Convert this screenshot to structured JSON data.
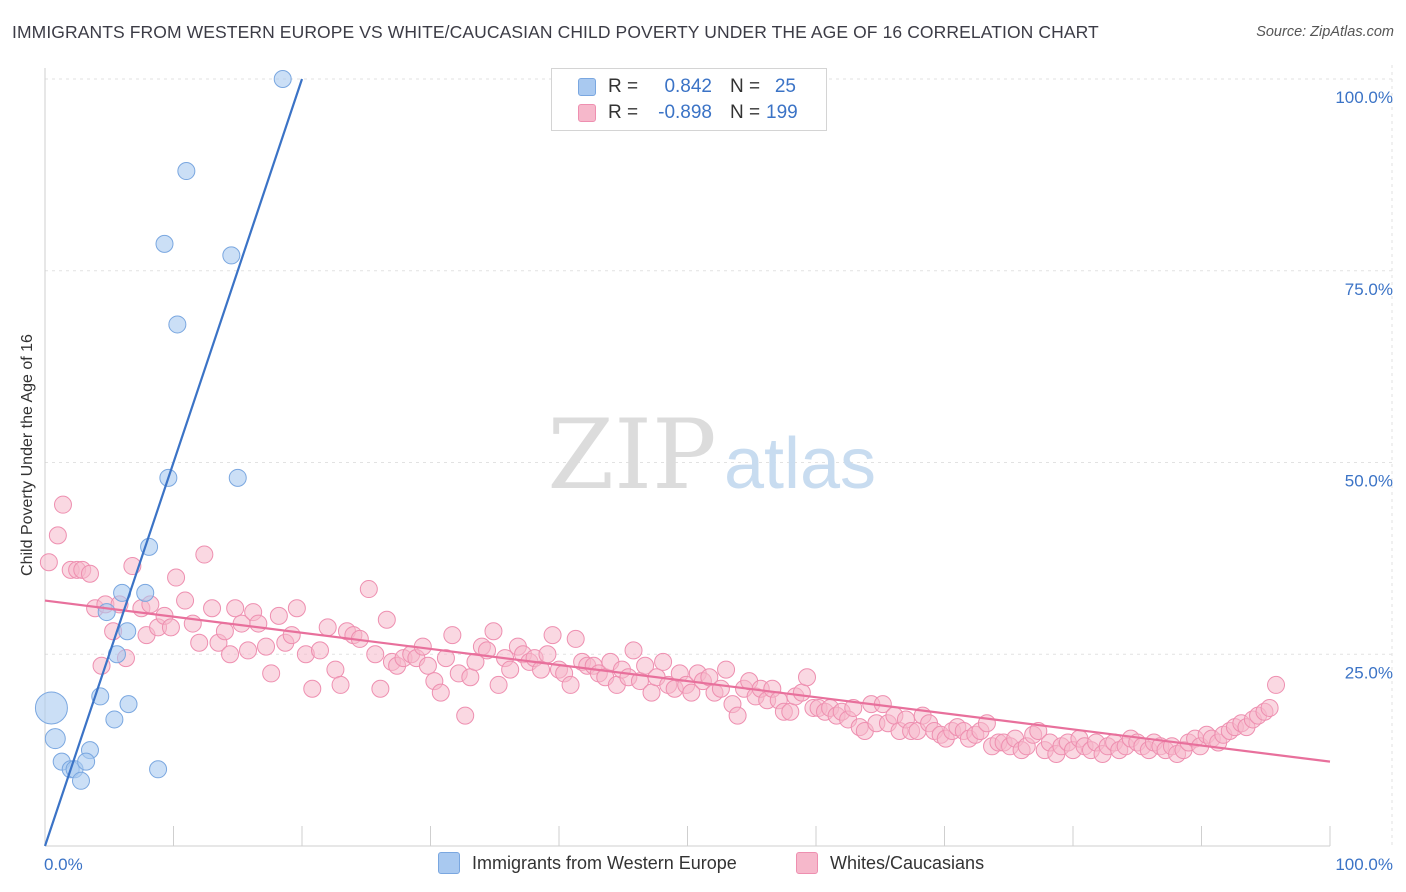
{
  "title": "IMMIGRANTS FROM WESTERN EUROPE VS WHITE/CAUCASIAN CHILD POVERTY UNDER THE AGE OF 16 CORRELATION CHART",
  "source": "Source: ZipAtlas.com",
  "watermark": {
    "zip": "ZIP",
    "atlas": "atlas"
  },
  "legend": {
    "rows": [
      {
        "r_label": "R =",
        "r_value": "0.842",
        "n_label": "N =",
        "n_value": "25",
        "color": "#a9c9f0",
        "border": "#7aa7e0"
      },
      {
        "r_label": "R =",
        "r_value": "-0.898",
        "n_label": "N =",
        "n_value": "199",
        "color": "#f6b8cb",
        "border": "#ee8fb0"
      }
    ]
  },
  "bottom_legend": [
    {
      "label": "Immigrants from Western Europe",
      "color": "#a9c9f0",
      "border": "#7aa7e0"
    },
    {
      "label": "Whites/Caucasians",
      "color": "#f6b8cb",
      "border": "#ee8fb0"
    }
  ],
  "chart_data": {
    "type": "scatter",
    "xlabel": "",
    "ylabel": "Child Poverty Under the Age of 16",
    "xlim": [
      0,
      100
    ],
    "ylim": [
      0,
      100
    ],
    "x_tick_labels": [
      "0.0%",
      "100.0%"
    ],
    "y_ticks": [
      {
        "value": 100,
        "label": "100.0%"
      },
      {
        "value": 75,
        "label": "75.0%"
      },
      {
        "value": 50,
        "label": "50.0%"
      },
      {
        "value": 25,
        "label": "25.0%"
      }
    ],
    "grid": true,
    "series": [
      {
        "name": "Immigrants from Western Europe",
        "color": "#a9c9f0",
        "stroke": "#7aa7e0",
        "trend_color": "#3b73c6",
        "trend": {
          "x": [
            0,
            20
          ],
          "y": [
            0,
            100
          ]
        },
        "points": [
          [
            0.5,
            18,
            3
          ],
          [
            0.8,
            14,
            1.5
          ],
          [
            1.3,
            11,
            1
          ],
          [
            2.0,
            10,
            1
          ],
          [
            2.3,
            10,
            1
          ],
          [
            2.8,
            8.5,
            1
          ],
          [
            3.5,
            12.5,
            1
          ],
          [
            3.2,
            11,
            1
          ],
          [
            4.3,
            19.5,
            1
          ],
          [
            5.4,
            16.5,
            1
          ],
          [
            5.6,
            25,
            1
          ],
          [
            6.4,
            28,
            1
          ],
          [
            6.5,
            18.5,
            1
          ],
          [
            4.8,
            30.5,
            1
          ],
          [
            7.8,
            33,
            1
          ],
          [
            8.1,
            39,
            1
          ],
          [
            8.8,
            10,
            1
          ],
          [
            9.6,
            48,
            1
          ],
          [
            10.3,
            68,
            1
          ],
          [
            9.3,
            78.5,
            1
          ],
          [
            11.0,
            88,
            1
          ],
          [
            14.5,
            77,
            1
          ],
          [
            15.0,
            48,
            1
          ],
          [
            18.5,
            100,
            1
          ],
          [
            6.0,
            33,
            1
          ]
        ]
      },
      {
        "name": "Whites/Caucasians",
        "color": "#f6b8cb",
        "stroke": "#ee8fb0",
        "trend_color": "#e8709c",
        "trend": {
          "x": [
            0,
            100
          ],
          "y": [
            32,
            11
          ]
        },
        "points": [
          [
            0.3,
            37
          ],
          [
            1.0,
            40.5
          ],
          [
            1.4,
            44.5
          ],
          [
            2.0,
            36
          ],
          [
            2.5,
            36
          ],
          [
            2.9,
            36
          ],
          [
            3.5,
            35.5
          ],
          [
            3.9,
            31
          ],
          [
            4.4,
            23.5
          ],
          [
            4.7,
            31.5
          ],
          [
            5.3,
            28
          ],
          [
            5.8,
            31.5
          ],
          [
            6.3,
            24.5
          ],
          [
            6.8,
            36.5
          ],
          [
            7.5,
            31
          ],
          [
            7.9,
            27.5
          ],
          [
            8.2,
            31.5
          ],
          [
            8.8,
            28.5
          ],
          [
            9.3,
            30
          ],
          [
            9.8,
            28.5
          ],
          [
            10.2,
            35
          ],
          [
            10.9,
            32
          ],
          [
            11.5,
            29
          ],
          [
            12.0,
            26.5
          ],
          [
            12.4,
            38
          ],
          [
            13.0,
            31
          ],
          [
            13.5,
            26.5
          ],
          [
            14.0,
            28
          ],
          [
            14.4,
            25
          ],
          [
            14.8,
            31
          ],
          [
            15.3,
            29
          ],
          [
            15.8,
            25.5
          ],
          [
            16.2,
            30.5
          ],
          [
            16.6,
            29
          ],
          [
            17.2,
            26
          ],
          [
            17.6,
            22.5
          ],
          [
            18.2,
            30
          ],
          [
            18.7,
            26.5
          ],
          [
            19.2,
            27.5
          ],
          [
            19.6,
            31
          ],
          [
            20.3,
            25
          ],
          [
            20.8,
            20.5
          ],
          [
            21.4,
            25.5
          ],
          [
            22.0,
            28.5
          ],
          [
            22.6,
            23
          ],
          [
            23.0,
            21
          ],
          [
            23.5,
            28
          ],
          [
            24.0,
            27.5
          ],
          [
            24.5,
            27
          ],
          [
            25.2,
            33.5
          ],
          [
            25.7,
            25
          ],
          [
            26.1,
            20.5
          ],
          [
            26.6,
            29.5
          ],
          [
            27.0,
            24
          ],
          [
            27.4,
            23.5
          ],
          [
            27.9,
            24.5
          ],
          [
            28.5,
            25
          ],
          [
            28.9,
            24.5
          ],
          [
            29.4,
            26
          ],
          [
            29.8,
            23.5
          ],
          [
            30.3,
            21.5
          ],
          [
            30.8,
            20
          ],
          [
            31.2,
            24.5
          ],
          [
            31.7,
            27.5
          ],
          [
            32.2,
            22.5
          ],
          [
            32.7,
            17
          ],
          [
            33.1,
            22
          ],
          [
            33.5,
            24
          ],
          [
            34.0,
            26
          ],
          [
            34.4,
            25.5
          ],
          [
            34.9,
            28
          ],
          [
            35.3,
            21
          ],
          [
            35.8,
            24.5
          ],
          [
            36.2,
            23
          ],
          [
            36.8,
            26
          ],
          [
            37.2,
            25
          ],
          [
            37.7,
            24
          ],
          [
            38.1,
            24.5
          ],
          [
            38.6,
            23
          ],
          [
            39.1,
            25
          ],
          [
            39.5,
            27.5
          ],
          [
            40.0,
            23
          ],
          [
            40.4,
            22.5
          ],
          [
            40.9,
            21
          ],
          [
            41.3,
            27
          ],
          [
            41.8,
            24
          ],
          [
            42.2,
            23.5
          ],
          [
            42.7,
            23.5
          ],
          [
            43.1,
            22.5
          ],
          [
            43.6,
            22
          ],
          [
            44.0,
            24
          ],
          [
            44.5,
            21
          ],
          [
            44.9,
            23
          ],
          [
            45.4,
            22
          ],
          [
            45.8,
            25.5
          ],
          [
            46.3,
            21.5
          ],
          [
            46.7,
            23.5
          ],
          [
            47.2,
            20
          ],
          [
            47.6,
            22
          ],
          [
            48.1,
            24
          ],
          [
            48.5,
            21
          ],
          [
            49.0,
            20.5
          ],
          [
            49.4,
            22.5
          ],
          [
            49.9,
            21
          ],
          [
            50.3,
            20
          ],
          [
            50.8,
            22.5
          ],
          [
            51.2,
            21.5
          ],
          [
            51.7,
            22
          ],
          [
            52.1,
            20
          ],
          [
            52.6,
            20.5
          ],
          [
            53.0,
            23
          ],
          [
            53.5,
            18.5
          ],
          [
            53.9,
            17
          ],
          [
            54.4,
            20.5
          ],
          [
            54.8,
            21.5
          ],
          [
            55.3,
            19.5
          ],
          [
            55.7,
            20.5
          ],
          [
            56.2,
            19
          ],
          [
            56.6,
            20.5
          ],
          [
            57.1,
            19
          ],
          [
            57.5,
            17.5
          ],
          [
            58.0,
            17.5
          ],
          [
            58.4,
            19.5
          ],
          [
            58.9,
            20
          ],
          [
            59.3,
            22
          ],
          [
            59.8,
            18
          ],
          [
            60.2,
            18
          ],
          [
            60.7,
            17.5
          ],
          [
            61.1,
            18
          ],
          [
            61.6,
            17
          ],
          [
            62.0,
            17.5
          ],
          [
            62.5,
            16.5
          ],
          [
            62.9,
            18
          ],
          [
            63.4,
            15.5
          ],
          [
            63.8,
            15
          ],
          [
            64.3,
            18.5
          ],
          [
            64.7,
            16
          ],
          [
            65.2,
            18.5
          ],
          [
            65.6,
            16
          ],
          [
            66.1,
            17
          ],
          [
            66.5,
            15
          ],
          [
            67.0,
            16.5
          ],
          [
            67.4,
            15
          ],
          [
            67.9,
            15
          ],
          [
            68.3,
            17
          ],
          [
            68.8,
            16
          ],
          [
            69.2,
            15
          ],
          [
            69.7,
            14.5
          ],
          [
            70.1,
            14
          ],
          [
            70.6,
            15
          ],
          [
            71.0,
            15.5
          ],
          [
            71.5,
            15
          ],
          [
            71.9,
            14
          ],
          [
            72.4,
            14.5
          ],
          [
            72.8,
            15
          ],
          [
            73.3,
            16
          ],
          [
            73.7,
            13
          ],
          [
            74.2,
            13.5
          ],
          [
            74.6,
            13.5
          ],
          [
            75.1,
            13
          ],
          [
            75.5,
            14
          ],
          [
            76.0,
            12.5
          ],
          [
            76.4,
            13
          ],
          [
            76.9,
            14.5
          ],
          [
            77.3,
            15
          ],
          [
            77.8,
            12.5
          ],
          [
            78.2,
            13.5
          ],
          [
            78.7,
            12
          ],
          [
            79.1,
            13
          ],
          [
            79.6,
            13.5
          ],
          [
            80.0,
            12.5
          ],
          [
            80.5,
            14
          ],
          [
            80.9,
            13
          ],
          [
            81.4,
            12.5
          ],
          [
            81.8,
            13.5
          ],
          [
            82.3,
            12
          ],
          [
            82.7,
            13
          ],
          [
            83.2,
            13.5
          ],
          [
            83.6,
            12.5
          ],
          [
            84.1,
            13
          ],
          [
            84.5,
            14
          ],
          [
            85.0,
            13.5
          ],
          [
            85.4,
            13
          ],
          [
            85.9,
            12.5
          ],
          [
            86.3,
            13.5
          ],
          [
            86.8,
            13
          ],
          [
            87.2,
            12.5
          ],
          [
            87.7,
            13
          ],
          [
            88.1,
            12
          ],
          [
            88.6,
            12.5
          ],
          [
            89.0,
            13.5
          ],
          [
            89.5,
            14
          ],
          [
            89.9,
            13
          ],
          [
            90.4,
            14.5
          ],
          [
            90.8,
            14
          ],
          [
            91.3,
            13.5
          ],
          [
            91.7,
            14.5
          ],
          [
            92.2,
            15
          ],
          [
            92.6,
            15.5
          ],
          [
            93.1,
            16
          ],
          [
            93.5,
            15.5
          ],
          [
            94.0,
            16.5
          ],
          [
            94.4,
            17
          ],
          [
            94.9,
            17.5
          ],
          [
            95.3,
            18
          ],
          [
            95.8,
            21
          ]
        ]
      }
    ]
  }
}
